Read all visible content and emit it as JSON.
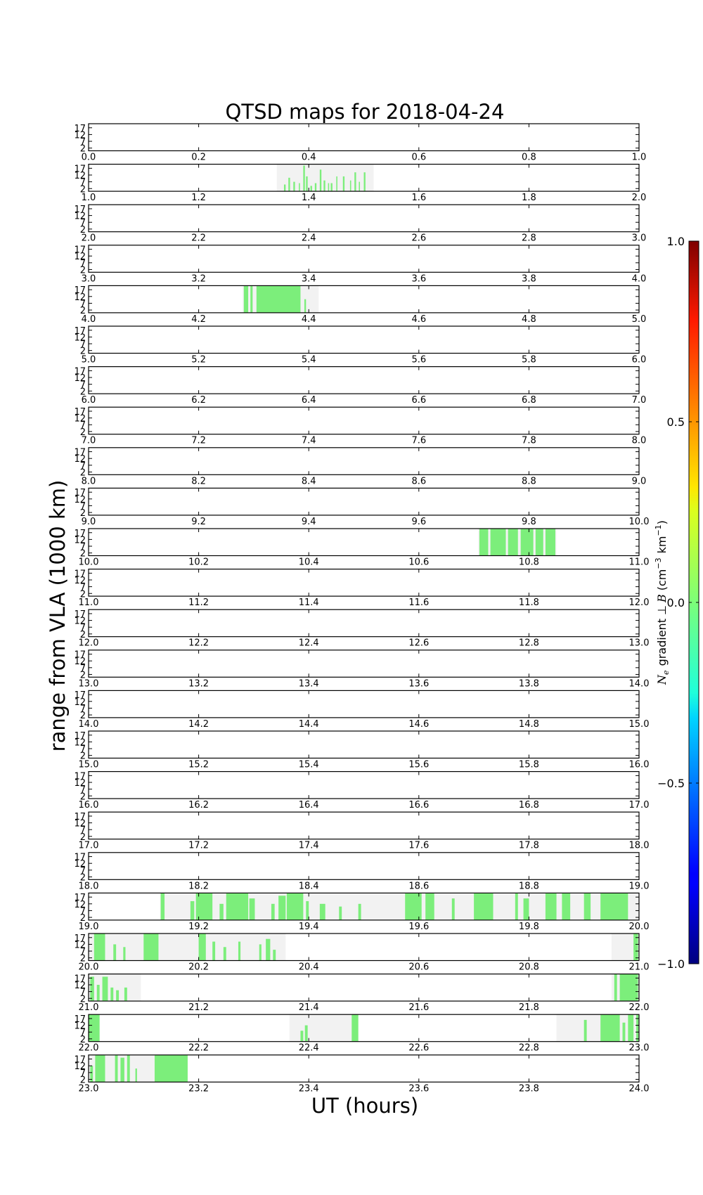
{
  "chart_data": {
    "type": "heatmap",
    "title": "QTSD maps for 2018-04-24",
    "xlabel": "UT (hours)",
    "ylabel": "range from VLA (1000 km)",
    "y_ticks": [
      "17",
      "12",
      "7",
      "2"
    ],
    "ylim": [
      0,
      20
    ],
    "colorbar": {
      "label_plain": "Ne gradient ⊥ B (cm⁻³ km⁻¹)",
      "label_parts": {
        "n": "N",
        "e": "e",
        "gradient": "gradient ⊥",
        "b": "B",
        "open": "(cm",
        "exp": "−3",
        "km": "km",
        "exp2": "−1",
        "close": ")"
      },
      "ticks": [
        "1.0",
        "0.5",
        "0.0",
        "−0.5",
        "−1.0"
      ],
      "tick_values": [
        1.0,
        0.5,
        0.0,
        -0.5,
        -1.0
      ],
      "range": [
        -1.0,
        1.0
      ],
      "colormap": "jet"
    },
    "colors": {
      "coverage": "#f2f2f2",
      "signal": "#7cee7b",
      "frame": "#000000"
    },
    "rows": [
      {
        "tick_labels": [
          "0.0",
          "0.2",
          "0.4",
          "0.6",
          "0.8",
          "1.0"
        ],
        "start": 0,
        "coverage": [],
        "signal": []
      },
      {
        "tick_labels": [
          "1.0",
          "1.2",
          "1.4",
          "1.6",
          "1.8",
          "2.0"
        ],
        "start": 1,
        "coverage": [
          [
            1.342,
            1.518
          ]
        ],
        "signal": [
          [
            1.355,
            1.358,
            0.25
          ],
          [
            1.363,
            1.366,
            0.5
          ],
          [
            1.372,
            1.375,
            0.35
          ],
          [
            1.382,
            1.384,
            0.3
          ],
          [
            1.39,
            1.393,
            0.95
          ],
          [
            1.395,
            1.398,
            0.55
          ],
          [
            1.403,
            1.406,
            0.2
          ],
          [
            1.411,
            1.414,
            0.3
          ],
          [
            1.42,
            1.423,
            0.8
          ],
          [
            1.427,
            1.43,
            0.4
          ],
          [
            1.435,
            1.437,
            0.3
          ],
          [
            1.44,
            1.443,
            0.3
          ],
          [
            1.45,
            1.452,
            0.55
          ],
          [
            1.462,
            1.465,
            0.55
          ],
          [
            1.475,
            1.477,
            0.4
          ],
          [
            1.483,
            1.486,
            0.7
          ],
          [
            1.491,
            1.493,
            0.35
          ],
          [
            1.5,
            1.503,
            0.7
          ]
        ]
      },
      {
        "tick_labels": [
          "2.0",
          "2.2",
          "2.4",
          "2.6",
          "2.8",
          "3.0"
        ],
        "start": 2,
        "coverage": [],
        "signal": []
      },
      {
        "tick_labels": [
          "3.0",
          "3.2",
          "3.4",
          "3.6",
          "3.8",
          "4.0"
        ],
        "start": 3,
        "coverage": [],
        "signal": []
      },
      {
        "tick_labels": [
          "4.0",
          "4.2",
          "4.4",
          "4.6",
          "4.8",
          "5.0"
        ],
        "start": 4,
        "coverage": [
          [
            4.28,
            4.418
          ]
        ],
        "signal": [
          [
            4.282,
            4.29,
            1
          ],
          [
            4.294,
            4.298,
            1
          ],
          [
            4.305,
            4.385,
            1
          ],
          [
            4.392,
            4.395,
            0.5
          ]
        ]
      },
      {
        "tick_labels": [
          "5.0",
          "5.2",
          "5.4",
          "5.6",
          "5.8",
          "6.0"
        ],
        "start": 5,
        "coverage": [],
        "signal": []
      },
      {
        "tick_labels": [
          "6.0",
          "6.2",
          "6.4",
          "6.6",
          "6.8",
          "7.0"
        ],
        "start": 6,
        "coverage": [],
        "signal": []
      },
      {
        "tick_labels": [
          "7.0",
          "7.2",
          "7.4",
          "7.6",
          "7.8",
          "8.0"
        ],
        "start": 7,
        "coverage": [],
        "signal": []
      },
      {
        "tick_labels": [
          "8.0",
          "8.2",
          "8.4",
          "8.6",
          "8.8",
          "9.0"
        ],
        "start": 8,
        "coverage": [],
        "signal": []
      },
      {
        "tick_labels": [
          "9.0",
          "9.2",
          "9.4",
          "9.6",
          "9.8",
          "10.0"
        ],
        "start": 9,
        "coverage": [],
        "signal": []
      },
      {
        "tick_labels": [
          "10.0",
          "10.2",
          "10.4",
          "10.6",
          "10.8",
          "11.0"
        ],
        "start": 10,
        "coverage": [
          [
            10.708,
            10.85
          ]
        ],
        "signal": [
          [
            10.71,
            10.726,
            1
          ],
          [
            10.73,
            10.758,
            1
          ],
          [
            10.762,
            10.78,
            1
          ],
          [
            10.785,
            10.808,
            1
          ],
          [
            10.812,
            10.826,
            1
          ],
          [
            10.83,
            10.848,
            1
          ]
        ]
      },
      {
        "tick_labels": [
          "11.0",
          "11.2",
          "11.4",
          "11.6",
          "11.8",
          "12.0"
        ],
        "start": 11,
        "coverage": [],
        "signal": []
      },
      {
        "tick_labels": [
          "12.0",
          "12.2",
          "12.4",
          "12.6",
          "12.8",
          "13.0"
        ],
        "start": 12,
        "coverage": [],
        "signal": []
      },
      {
        "tick_labels": [
          "13.0",
          "13.2",
          "13.4",
          "13.6",
          "13.8",
          "14.0"
        ],
        "start": 13,
        "coverage": [],
        "signal": []
      },
      {
        "tick_labels": [
          "14.0",
          "14.2",
          "14.4",
          "14.6",
          "14.8",
          "15.0"
        ],
        "start": 14,
        "coverage": [],
        "signal": []
      },
      {
        "tick_labels": [
          "15.0",
          "15.2",
          "15.4",
          "15.6",
          "15.8",
          "16.0"
        ],
        "start": 15,
        "coverage": [],
        "signal": []
      },
      {
        "tick_labels": [
          "16.0",
          "16.2",
          "16.4",
          "16.6",
          "16.8",
          "17.0"
        ],
        "start": 16,
        "coverage": [],
        "signal": []
      },
      {
        "tick_labels": [
          "17.0",
          "17.2",
          "17.4",
          "17.6",
          "17.8",
          "18.0"
        ],
        "start": 17,
        "coverage": [],
        "signal": []
      },
      {
        "tick_labels": [
          "18.0",
          "18.2",
          "18.4",
          "18.6",
          "18.8",
          "19.0"
        ],
        "start": 18,
        "coverage": [],
        "signal": []
      },
      {
        "tick_labels": [
          "19.0",
          "19.2",
          "19.4",
          "19.6",
          "19.8",
          "20.0"
        ],
        "start": 19,
        "coverage": [
          [
            19.13,
            20.0
          ]
        ],
        "signal": [
          [
            19.131,
            19.138,
            1
          ],
          [
            19.185,
            19.192,
            0.7
          ],
          [
            19.195,
            19.225,
            1
          ],
          [
            19.238,
            19.245,
            0.6
          ],
          [
            19.25,
            19.29,
            1
          ],
          [
            19.292,
            19.302,
            0.8
          ],
          [
            19.332,
            19.338,
            0.6
          ],
          [
            19.345,
            19.358,
            0.9
          ],
          [
            19.36,
            19.39,
            1
          ],
          [
            19.395,
            19.4,
            0.7
          ],
          [
            19.42,
            19.43,
            0.6
          ],
          [
            19.455,
            19.46,
            0.5
          ],
          [
            19.49,
            19.495,
            0.6
          ],
          [
            19.575,
            19.605,
            1
          ],
          [
            19.612,
            19.628,
            1
          ],
          [
            19.66,
            19.665,
            0.8
          ],
          [
            19.7,
            19.735,
            1
          ],
          [
            19.775,
            19.78,
            1
          ],
          [
            19.79,
            19.8,
            0.8
          ],
          [
            19.83,
            19.85,
            1
          ],
          [
            19.86,
            19.875,
            1
          ],
          [
            19.9,
            19.912,
            1
          ],
          [
            19.93,
            19.98,
            1
          ]
        ]
      },
      {
        "tick_labels": [
          "20.0",
          "20.2",
          "20.4",
          "20.6",
          "20.8",
          "21.0"
        ],
        "start": 20,
        "coverage": [
          [
            20.0,
            20.358
          ],
          [
            20.95,
            21.0
          ]
        ],
        "signal": [
          [
            20.01,
            20.03,
            1
          ],
          [
            20.045,
            20.05,
            0.6
          ],
          [
            20.063,
            20.067,
            0.5
          ],
          [
            20.1,
            20.127,
            1
          ],
          [
            20.2,
            20.213,
            1
          ],
          [
            20.225,
            20.23,
            0.7
          ],
          [
            20.245,
            20.25,
            0.5
          ],
          [
            20.272,
            20.276,
            0.7
          ],
          [
            20.31,
            20.314,
            0.6
          ],
          [
            20.322,
            20.33,
            0.8
          ],
          [
            20.335,
            20.34,
            0.4
          ],
          [
            20.99,
            20.998,
            1
          ]
        ]
      },
      {
        "tick_labels": [
          "21.0",
          "21.2",
          "21.4",
          "21.6",
          "21.8",
          "22.0"
        ],
        "start": 21,
        "coverage": [
          [
            21.0,
            21.095
          ],
          [
            21.95,
            22.0
          ]
        ],
        "signal": [
          [
            21.003,
            21.01,
            0.9
          ],
          [
            21.015,
            21.02,
            0.6
          ],
          [
            21.025,
            21.035,
            0.9
          ],
          [
            21.04,
            21.045,
            0.5
          ],
          [
            21.05,
            21.055,
            0.4
          ],
          [
            21.065,
            21.07,
            0.5
          ],
          [
            21.955,
            21.96,
            1
          ],
          [
            21.965,
            21.998,
            1
          ]
        ]
      },
      {
        "tick_labels": [
          "22.0",
          "22.2",
          "22.4",
          "22.6",
          "22.8",
          "23.0"
        ],
        "start": 22,
        "coverage": [
          [
            22.0,
            22.02
          ],
          [
            22.365,
            22.49
          ],
          [
            22.85,
            23.0
          ]
        ],
        "signal": [
          [
            22.0,
            22.02,
            1
          ],
          [
            22.385,
            22.39,
            0.4
          ],
          [
            22.393,
            22.398,
            0.6
          ],
          [
            22.478,
            22.49,
            1
          ],
          [
            22.9,
            22.905,
            0.8
          ],
          [
            22.93,
            22.965,
            1
          ],
          [
            22.97,
            22.975,
            0.7
          ],
          [
            22.98,
            22.99,
            1
          ],
          [
            22.995,
            22.999,
            1
          ]
        ]
      },
      {
        "tick_labels": [
          "23.0",
          "23.2",
          "23.4",
          "23.6",
          "23.8",
          "24.0"
        ],
        "start": 23,
        "coverage": [
          [
            23.0,
            23.18
          ]
        ],
        "signal": [
          [
            23.003,
            23.008,
            0.6
          ],
          [
            23.012,
            23.03,
            1
          ],
          [
            23.048,
            23.053,
            1
          ],
          [
            23.058,
            23.065,
            0.9
          ],
          [
            23.07,
            23.075,
            1
          ],
          [
            23.085,
            23.088,
            0.5
          ],
          [
            23.12,
            23.18,
            1
          ]
        ]
      }
    ]
  }
}
